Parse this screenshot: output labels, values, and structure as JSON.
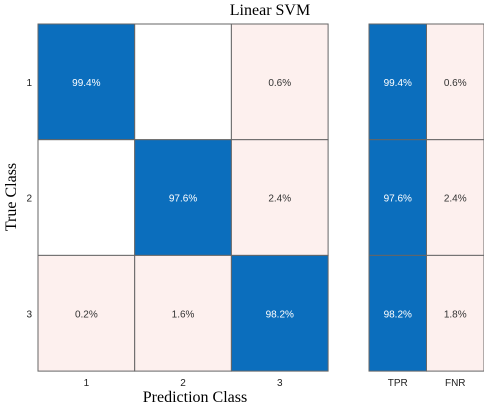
{
  "chart_data": {
    "type": "heatmap",
    "title": "Linear SVM",
    "xlabel": "Prediction Class",
    "ylabel": "True Class",
    "row_labels": [
      "1",
      "2",
      "3"
    ],
    "col_labels": [
      "1",
      "2",
      "3"
    ],
    "matrix": [
      [
        "99.4%",
        "",
        "0.6%"
      ],
      [
        "",
        "97.6%",
        "2.4%"
      ],
      [
        "0.2%",
        "1.6%",
        "98.2%"
      ]
    ],
    "values": [
      [
        99.4,
        0,
        0.6
      ],
      [
        0,
        97.6,
        2.4
      ],
      [
        0.2,
        1.6,
        98.2
      ]
    ],
    "side_labels": [
      "TPR",
      "FNR"
    ],
    "side_matrix": [
      [
        "99.4%",
        "0.6%"
      ],
      [
        "97.6%",
        "2.4%"
      ],
      [
        "98.2%",
        "1.8%"
      ]
    ],
    "side_values": [
      [
        99.4,
        0.6
      ],
      [
        97.6,
        2.4
      ],
      [
        98.2,
        1.8
      ]
    ]
  },
  "colors": {
    "high": "#0b6ebd",
    "low": "#fdf0ee",
    "empty": "#ffffff",
    "grid": "#666666",
    "text_on_high": "#ffffff",
    "text_on_low": "#333333"
  }
}
